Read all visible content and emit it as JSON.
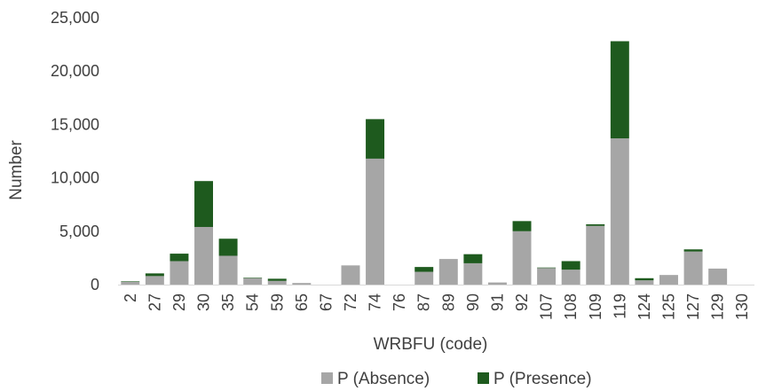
{
  "chart_data": {
    "type": "bar",
    "stacked": true,
    "title": "",
    "xlabel": "WRBFU (code)",
    "ylabel": "Number",
    "ylim": [
      0,
      25000
    ],
    "yticks": [
      "0",
      "5,000",
      "10,000",
      "15,000",
      "20,000",
      "25,000"
    ],
    "grid": false,
    "legend_position": "bottom",
    "categories": [
      "2",
      "27",
      "29",
      "30",
      "35",
      "54",
      "59",
      "65",
      "67",
      "72",
      "74",
      "76",
      "87",
      "89",
      "90",
      "91",
      "92",
      "107",
      "108",
      "109",
      "119",
      "124",
      "125",
      "127",
      "129",
      "130"
    ],
    "series": [
      {
        "name": "P (Absence)",
        "color": "#a6a6a6",
        "values": [
          250,
          800,
          2200,
          5400,
          2700,
          600,
          350,
          150,
          0,
          1800,
          11800,
          0,
          1200,
          2400,
          2000,
          200,
          5000,
          1550,
          1400,
          5500,
          13700,
          400,
          900,
          3100,
          1500,
          0
        ]
      },
      {
        "name": "P (Presence)",
        "color": "#1e5a1e",
        "values": [
          50,
          250,
          700,
          4300,
          1600,
          50,
          200,
          0,
          0,
          0,
          3700,
          0,
          450,
          0,
          850,
          0,
          950,
          50,
          800,
          150,
          9100,
          200,
          0,
          200,
          0,
          0
        ]
      }
    ]
  }
}
